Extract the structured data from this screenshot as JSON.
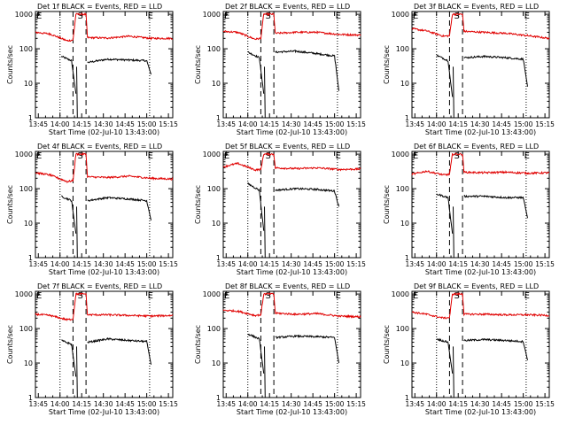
{
  "common": {
    "xlabel": "Start Time (02-Jul-10 13:43:00)",
    "ylabel": "Counts/sec",
    "x_ticks": [
      "13:45",
      "14:00",
      "14:15",
      "14:30",
      "14:45",
      "15:00",
      "15:15"
    ],
    "x_tick_minutes": [
      2,
      17,
      32,
      47,
      62,
      77,
      92
    ],
    "y_ticks": [
      "1",
      "10",
      "100",
      "1000"
    ],
    "y_tick_values": [
      1,
      10,
      100,
      1000
    ],
    "xlim_minutes": [
      0,
      95
    ],
    "ylim": [
      1,
      1200
    ],
    "yscale": "log",
    "colors": {
      "events": "#000000",
      "lld": "#e00000",
      "axes": "#000000"
    },
    "markers": [
      {
        "label": "E",
        "minute": 0
      },
      {
        "label": "S",
        "minute": 28.5
      },
      {
        "label": "E",
        "minute": 77
      }
    ],
    "dotted_lines_minutes": [
      17,
      79
    ],
    "dashed_lines_minutes": [
      26,
      35
    ]
  },
  "panels": [
    {
      "title": "Det 1f BLACK = Events, RED = LLD"
    },
    {
      "title": "Det 2f BLACK = Events, RED = LLD"
    },
    {
      "title": "Det 3f BLACK = Events, RED = LLD"
    },
    {
      "title": "Det 4f BLACK = Events, RED = LLD"
    },
    {
      "title": "Det 5f BLACK = Events, RED = LLD"
    },
    {
      "title": "Det 6f BLACK = Events, RED = LLD"
    },
    {
      "title": "Det 7f BLACK = Events, RED = LLD"
    },
    {
      "title": "Det 8f BLACK = Events, RED = LLD"
    },
    {
      "title": "Det 9f BLACK = Events, RED = LLD"
    }
  ],
  "chart_data": [
    {
      "type": "line",
      "title": "Det 1f BLACK = Events, RED = LLD",
      "xlabel": "Start Time (02-Jul-10 13:43:00)",
      "ylabel": "Counts/sec",
      "yscale": "log",
      "ylim": [
        1,
        1200
      ],
      "series": [
        {
          "name": "Events",
          "color": "#000000",
          "points": [
            [
              18,
              60
            ],
            [
              25,
              45
            ],
            [
              28,
              5
            ],
            [
              29,
              0
            ],
            [
              36,
              40
            ],
            [
              50,
              50
            ],
            [
              65,
              47
            ],
            [
              77,
              45
            ],
            [
              80,
              18
            ]
          ]
        },
        {
          "name": "LLD",
          "color": "#e00000",
          "points": [
            [
              0,
              300
            ],
            [
              10,
              270
            ],
            [
              22,
              170
            ],
            [
              26,
              180
            ],
            [
              28,
              1000
            ],
            [
              35,
              1000
            ],
            [
              36,
              210
            ],
            [
              50,
              205
            ],
            [
              65,
              230
            ],
            [
              80,
              200
            ],
            [
              95,
              200
            ]
          ]
        }
      ]
    },
    {
      "type": "line",
      "title": "Det 2f BLACK = Events, RED = LLD",
      "xlabel": "Start Time (02-Jul-10 13:43:00)",
      "ylabel": "Counts/sec",
      "yscale": "log",
      "ylim": [
        1,
        1200
      ],
      "series": [
        {
          "name": "Events",
          "color": "#000000",
          "points": [
            [
              17,
              80
            ],
            [
              25,
              55
            ],
            [
              28,
              5
            ],
            [
              29,
              0
            ],
            [
              36,
              80
            ],
            [
              50,
              85
            ],
            [
              65,
              72
            ],
            [
              77,
              62
            ],
            [
              80,
              6
            ]
          ]
        },
        {
          "name": "LLD",
          "color": "#e00000",
          "points": [
            [
              0,
              320
            ],
            [
              10,
              300
            ],
            [
              22,
              190
            ],
            [
              26,
              200
            ],
            [
              28,
              1000
            ],
            [
              35,
              1000
            ],
            [
              36,
              280
            ],
            [
              50,
              300
            ],
            [
              65,
              300
            ],
            [
              80,
              260
            ],
            [
              95,
              250
            ]
          ]
        }
      ]
    },
    {
      "type": "line",
      "title": "Det 3f BLACK = Events, RED = LLD",
      "xlabel": "Start Time (02-Jul-10 13:43:00)",
      "ylabel": "Counts/sec",
      "yscale": "log",
      "ylim": [
        1,
        1200
      ],
      "series": [
        {
          "name": "Events",
          "color": "#000000",
          "points": [
            [
              17,
              65
            ],
            [
              25,
              45
            ],
            [
              28,
              4
            ],
            [
              29,
              0
            ],
            [
              36,
              55
            ],
            [
              50,
              60
            ],
            [
              65,
              55
            ],
            [
              77,
              50
            ],
            [
              80,
              8
            ]
          ]
        },
        {
          "name": "LLD",
          "color": "#e00000",
          "points": [
            [
              0,
              380
            ],
            [
              10,
              330
            ],
            [
              22,
              230
            ],
            [
              26,
              240
            ],
            [
              28,
              1000
            ],
            [
              35,
              1000
            ],
            [
              36,
              320
            ],
            [
              50,
              300
            ],
            [
              65,
              280
            ],
            [
              80,
              240
            ],
            [
              95,
              200
            ]
          ]
        }
      ]
    },
    {
      "type": "line",
      "title": "Det 4f BLACK = Events, RED = LLD",
      "xlabel": "Start Time (02-Jul-10 13:43:00)",
      "ylabel": "Counts/sec",
      "yscale": "log",
      "ylim": [
        1,
        1200
      ],
      "series": [
        {
          "name": "Events",
          "color": "#000000",
          "points": [
            [
              18,
              60
            ],
            [
              25,
              45
            ],
            [
              28,
              5
            ],
            [
              29,
              0
            ],
            [
              36,
              45
            ],
            [
              50,
              55
            ],
            [
              65,
              50
            ],
            [
              77,
              45
            ],
            [
              80,
              12
            ]
          ]
        },
        {
          "name": "LLD",
          "color": "#e00000",
          "points": [
            [
              0,
              290
            ],
            [
              10,
              250
            ],
            [
              22,
              160
            ],
            [
              26,
              170
            ],
            [
              28,
              1000
            ],
            [
              35,
              1000
            ],
            [
              36,
              220
            ],
            [
              50,
              210
            ],
            [
              65,
              230
            ],
            [
              80,
              200
            ],
            [
              95,
              190
            ]
          ]
        }
      ]
    },
    {
      "type": "line",
      "title": "Det 5f BLACK = Events, RED = LLD",
      "xlabel": "Start Time (02-Jul-10 13:43:00)",
      "ylabel": "Counts/sec",
      "yscale": "log",
      "ylim": [
        1,
        1200
      ],
      "series": [
        {
          "name": "Events",
          "color": "#000000",
          "points": [
            [
              17,
              140
            ],
            [
              25,
              90
            ],
            [
              28,
              6
            ],
            [
              29,
              0
            ],
            [
              36,
              90
            ],
            [
              50,
              100
            ],
            [
              65,
              95
            ],
            [
              77,
              85
            ],
            [
              80,
              30
            ]
          ]
        },
        {
          "name": "LLD",
          "color": "#e00000",
          "points": [
            [
              0,
              430
            ],
            [
              10,
              540
            ],
            [
              22,
              350
            ],
            [
              26,
              360
            ],
            [
              28,
              1000
            ],
            [
              35,
              1000
            ],
            [
              36,
              400
            ],
            [
              50,
              380
            ],
            [
              65,
              400
            ],
            [
              80,
              360
            ],
            [
              95,
              370
            ]
          ]
        }
      ]
    },
    {
      "type": "line",
      "title": "Det 6f BLACK = Events, RED = LLD",
      "xlabel": "Start Time (02-Jul-10 13:43:00)",
      "ylabel": "Counts/sec",
      "yscale": "log",
      "ylim": [
        1,
        1200
      ],
      "series": [
        {
          "name": "Events",
          "color": "#000000",
          "points": [
            [
              17,
              70
            ],
            [
              25,
              55
            ],
            [
              28,
              5
            ],
            [
              29,
              0
            ],
            [
              36,
              60
            ],
            [
              50,
              60
            ],
            [
              65,
              55
            ],
            [
              77,
              55
            ],
            [
              80,
              14
            ]
          ]
        },
        {
          "name": "LLD",
          "color": "#e00000",
          "points": [
            [
              0,
              260
            ],
            [
              10,
              320
            ],
            [
              22,
              250
            ],
            [
              26,
              260
            ],
            [
              28,
              1000
            ],
            [
              35,
              1000
            ],
            [
              36,
              300
            ],
            [
              50,
              290
            ],
            [
              65,
              300
            ],
            [
              80,
              280
            ],
            [
              95,
              290
            ]
          ]
        }
      ]
    },
    {
      "type": "line",
      "title": "Det 7f BLACK = Events, RED = LLD",
      "xlabel": "Start Time (02-Jul-10 13:43:00)",
      "ylabel": "Counts/sec",
      "yscale": "log",
      "ylim": [
        1,
        1200
      ],
      "series": [
        {
          "name": "Events",
          "color": "#000000",
          "points": [
            [
              18,
              45
            ],
            [
              25,
              35
            ],
            [
              28,
              4
            ],
            [
              29,
              0
            ],
            [
              36,
              40
            ],
            [
              50,
              50
            ],
            [
              65,
              45
            ],
            [
              77,
              42
            ],
            [
              80,
              9
            ]
          ]
        },
        {
          "name": "LLD",
          "color": "#e00000",
          "points": [
            [
              0,
              260
            ],
            [
              10,
              240
            ],
            [
              22,
              180
            ],
            [
              26,
              190
            ],
            [
              28,
              1000
            ],
            [
              35,
              1000
            ],
            [
              36,
              250
            ],
            [
              50,
              250
            ],
            [
              65,
              240
            ],
            [
              80,
              230
            ],
            [
              95,
              240
            ]
          ]
        }
      ]
    },
    {
      "type": "line",
      "title": "Det 8f BLACK = Events, RED = LLD",
      "xlabel": "Start Time (02-Jul-10 13:43:00)",
      "ylabel": "Counts/sec",
      "yscale": "log",
      "ylim": [
        1,
        1200
      ],
      "series": [
        {
          "name": "Events",
          "color": "#000000",
          "points": [
            [
              17,
              70
            ],
            [
              25,
              50
            ],
            [
              28,
              5
            ],
            [
              29,
              0
            ],
            [
              36,
              55
            ],
            [
              50,
              60
            ],
            [
              65,
              58
            ],
            [
              77,
              55
            ],
            [
              80,
              10
            ]
          ]
        },
        {
          "name": "LLD",
          "color": "#e00000",
          "points": [
            [
              0,
              340
            ],
            [
              10,
              320
            ],
            [
              22,
              240
            ],
            [
              26,
              250
            ],
            [
              28,
              1000
            ],
            [
              35,
              1000
            ],
            [
              36,
              280
            ],
            [
              50,
              260
            ],
            [
              65,
              270
            ],
            [
              80,
              230
            ],
            [
              95,
              220
            ]
          ]
        }
      ]
    },
    {
      "type": "line",
      "title": "Det 9f BLACK = Events, RED = LLD",
      "xlabel": "Start Time (02-Jul-10 13:43:00)",
      "ylabel": "Counts/sec",
      "yscale": "log",
      "ylim": [
        1,
        1200
      ],
      "series": [
        {
          "name": "Events",
          "color": "#000000",
          "points": [
            [
              17,
              50
            ],
            [
              25,
              40
            ],
            [
              28,
              5
            ],
            [
              29,
              0
            ],
            [
              36,
              45
            ],
            [
              50,
              48
            ],
            [
              65,
              45
            ],
            [
              77,
              42
            ],
            [
              80,
              12
            ]
          ]
        },
        {
          "name": "LLD",
          "color": "#e00000",
          "points": [
            [
              0,
              300
            ],
            [
              10,
              260
            ],
            [
              22,
              200
            ],
            [
              26,
              210
            ],
            [
              28,
              1000
            ],
            [
              35,
              1000
            ],
            [
              36,
              260
            ],
            [
              50,
              260
            ],
            [
              65,
              250
            ],
            [
              80,
              250
            ],
            [
              95,
              240
            ]
          ]
        }
      ]
    }
  ]
}
